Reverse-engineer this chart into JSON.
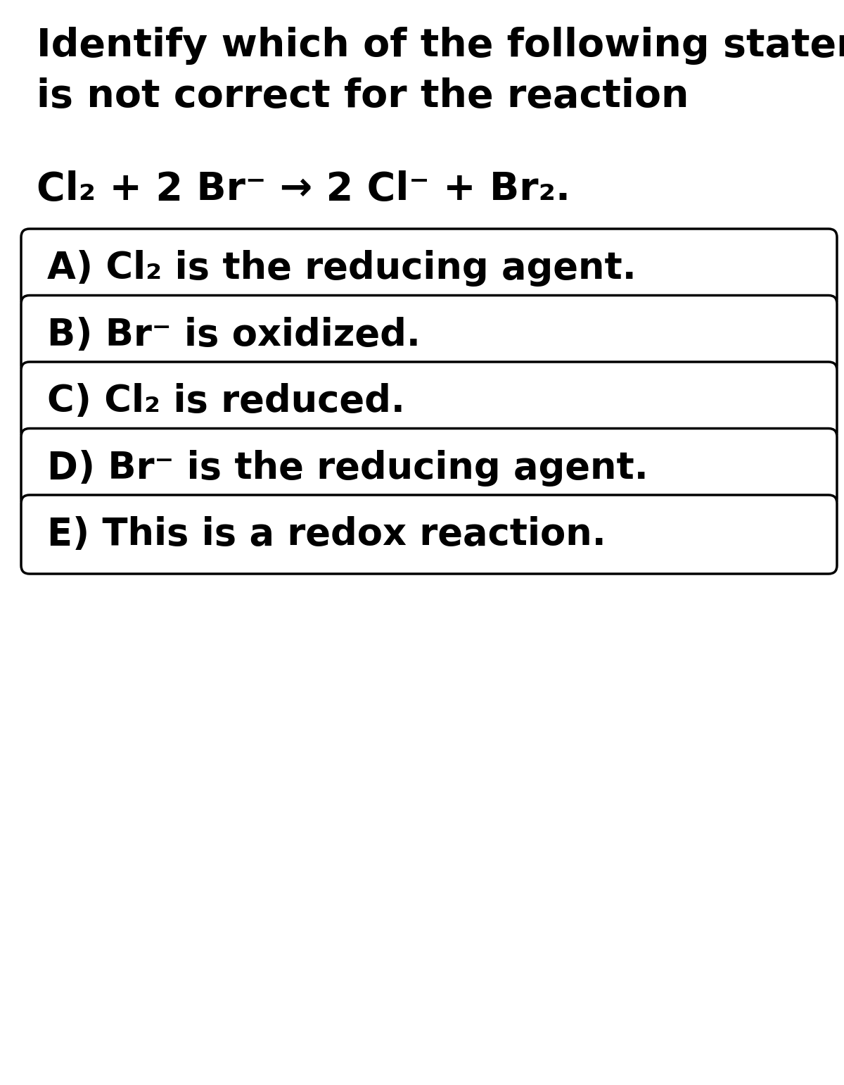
{
  "bg_color": "#ffffff",
  "text_color": "#000000",
  "title_lines": [
    "Identify which of the following statements",
    "is not correct for the reaction"
  ],
  "equation": "Cl₂ + 2 Br⁻ → 2 Cl⁻ + Br₂.",
  "options": [
    "A) Cl₂ is the reducing agent.",
    "B) Br⁻ is oxidized.",
    "C) Cl₂ is reduced.",
    "D) Br⁻ is the reducing agent.",
    "E) This is a redox reaction."
  ],
  "box_edge_color": "#000000",
  "box_bg": "#ffffff",
  "title_fontsize": 40,
  "equation_fontsize": 40,
  "option_fontsize": 38,
  "fig_width": 12.0,
  "fig_height": 15.41
}
